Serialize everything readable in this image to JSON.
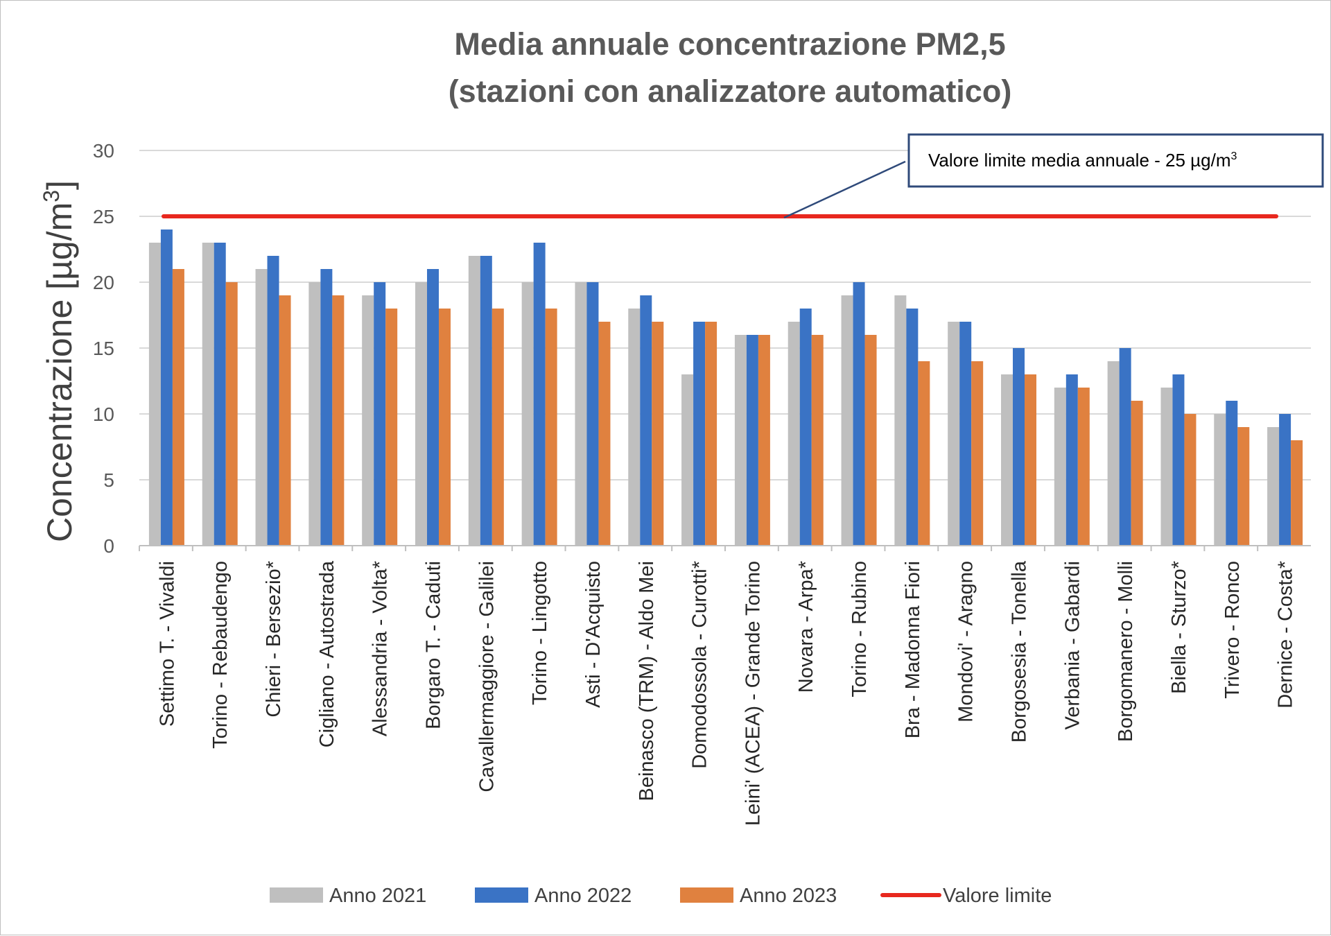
{
  "chart_data": {
    "type": "bar",
    "title_lines": [
      "Media annuale concentrazione PM2,5",
      "(stazioni con analizzatore automatico)"
    ],
    "ylabel": "Concentrazione [µg/m",
    "ylabel_sup": "3",
    "ylabel_close": "]",
    "xlabel": "",
    "ylim": [
      0,
      30
    ],
    "yticks": [
      "0",
      "5",
      "10",
      "15",
      "20",
      "25",
      "30"
    ],
    "grid": true,
    "legend_position": "bottom",
    "categories": [
      "Settimo T. - Vivaldi",
      "Torino - Rebaudengo",
      "Chieri - Bersezio*",
      "Cigliano - Autostrada",
      "Alessandria - Volta*",
      "Borgaro T. - Caduti",
      "Cavallermaggiore - Galilei",
      "Torino - Lingotto",
      "Asti - D'Acquisto",
      "Beinasco (TRM) - Aldo Mei",
      "Domodossola - Curotti*",
      "Leini' (ACEA) - Grande Torino",
      "Novara - Arpa*",
      "Torino - Rubino",
      "Bra - Madonna Fiori",
      "Mondovi' - Aragno",
      "Borgosesia - Tonella",
      "Verbania - Gabardi",
      "Borgomanero - Molli",
      "Biella - Sturzo*",
      "Trivero - Ronco",
      "Dernice - Costa*"
    ],
    "series": [
      {
        "name": "Anno 2021",
        "color": "#bfbfbf",
        "values": [
          23,
          23,
          21,
          20,
          19,
          20,
          22,
          20,
          20,
          18,
          13,
          16,
          17,
          19,
          19,
          17,
          13,
          12,
          14,
          12,
          10,
          9
        ]
      },
      {
        "name": "Anno 2022",
        "color": "#3a73c5",
        "values": [
          24,
          23,
          22,
          21,
          20,
          21,
          22,
          23,
          20,
          19,
          17,
          16,
          18,
          20,
          18,
          17,
          15,
          13,
          15,
          13,
          11,
          10
        ]
      },
      {
        "name": "Anno 2023",
        "color": "#e0813f",
        "values": [
          21,
          20,
          19,
          19,
          18,
          18,
          18,
          18,
          17,
          17,
          17,
          16,
          16,
          16,
          14,
          14,
          13,
          12,
          11,
          10,
          9,
          8
        ]
      }
    ],
    "limit_line": {
      "name": "Valore limite",
      "value": 25,
      "color": "#e8281e"
    },
    "annotation": {
      "text": "Valore limite media annuale  - 25 µg/m",
      "sup": "3"
    }
  }
}
